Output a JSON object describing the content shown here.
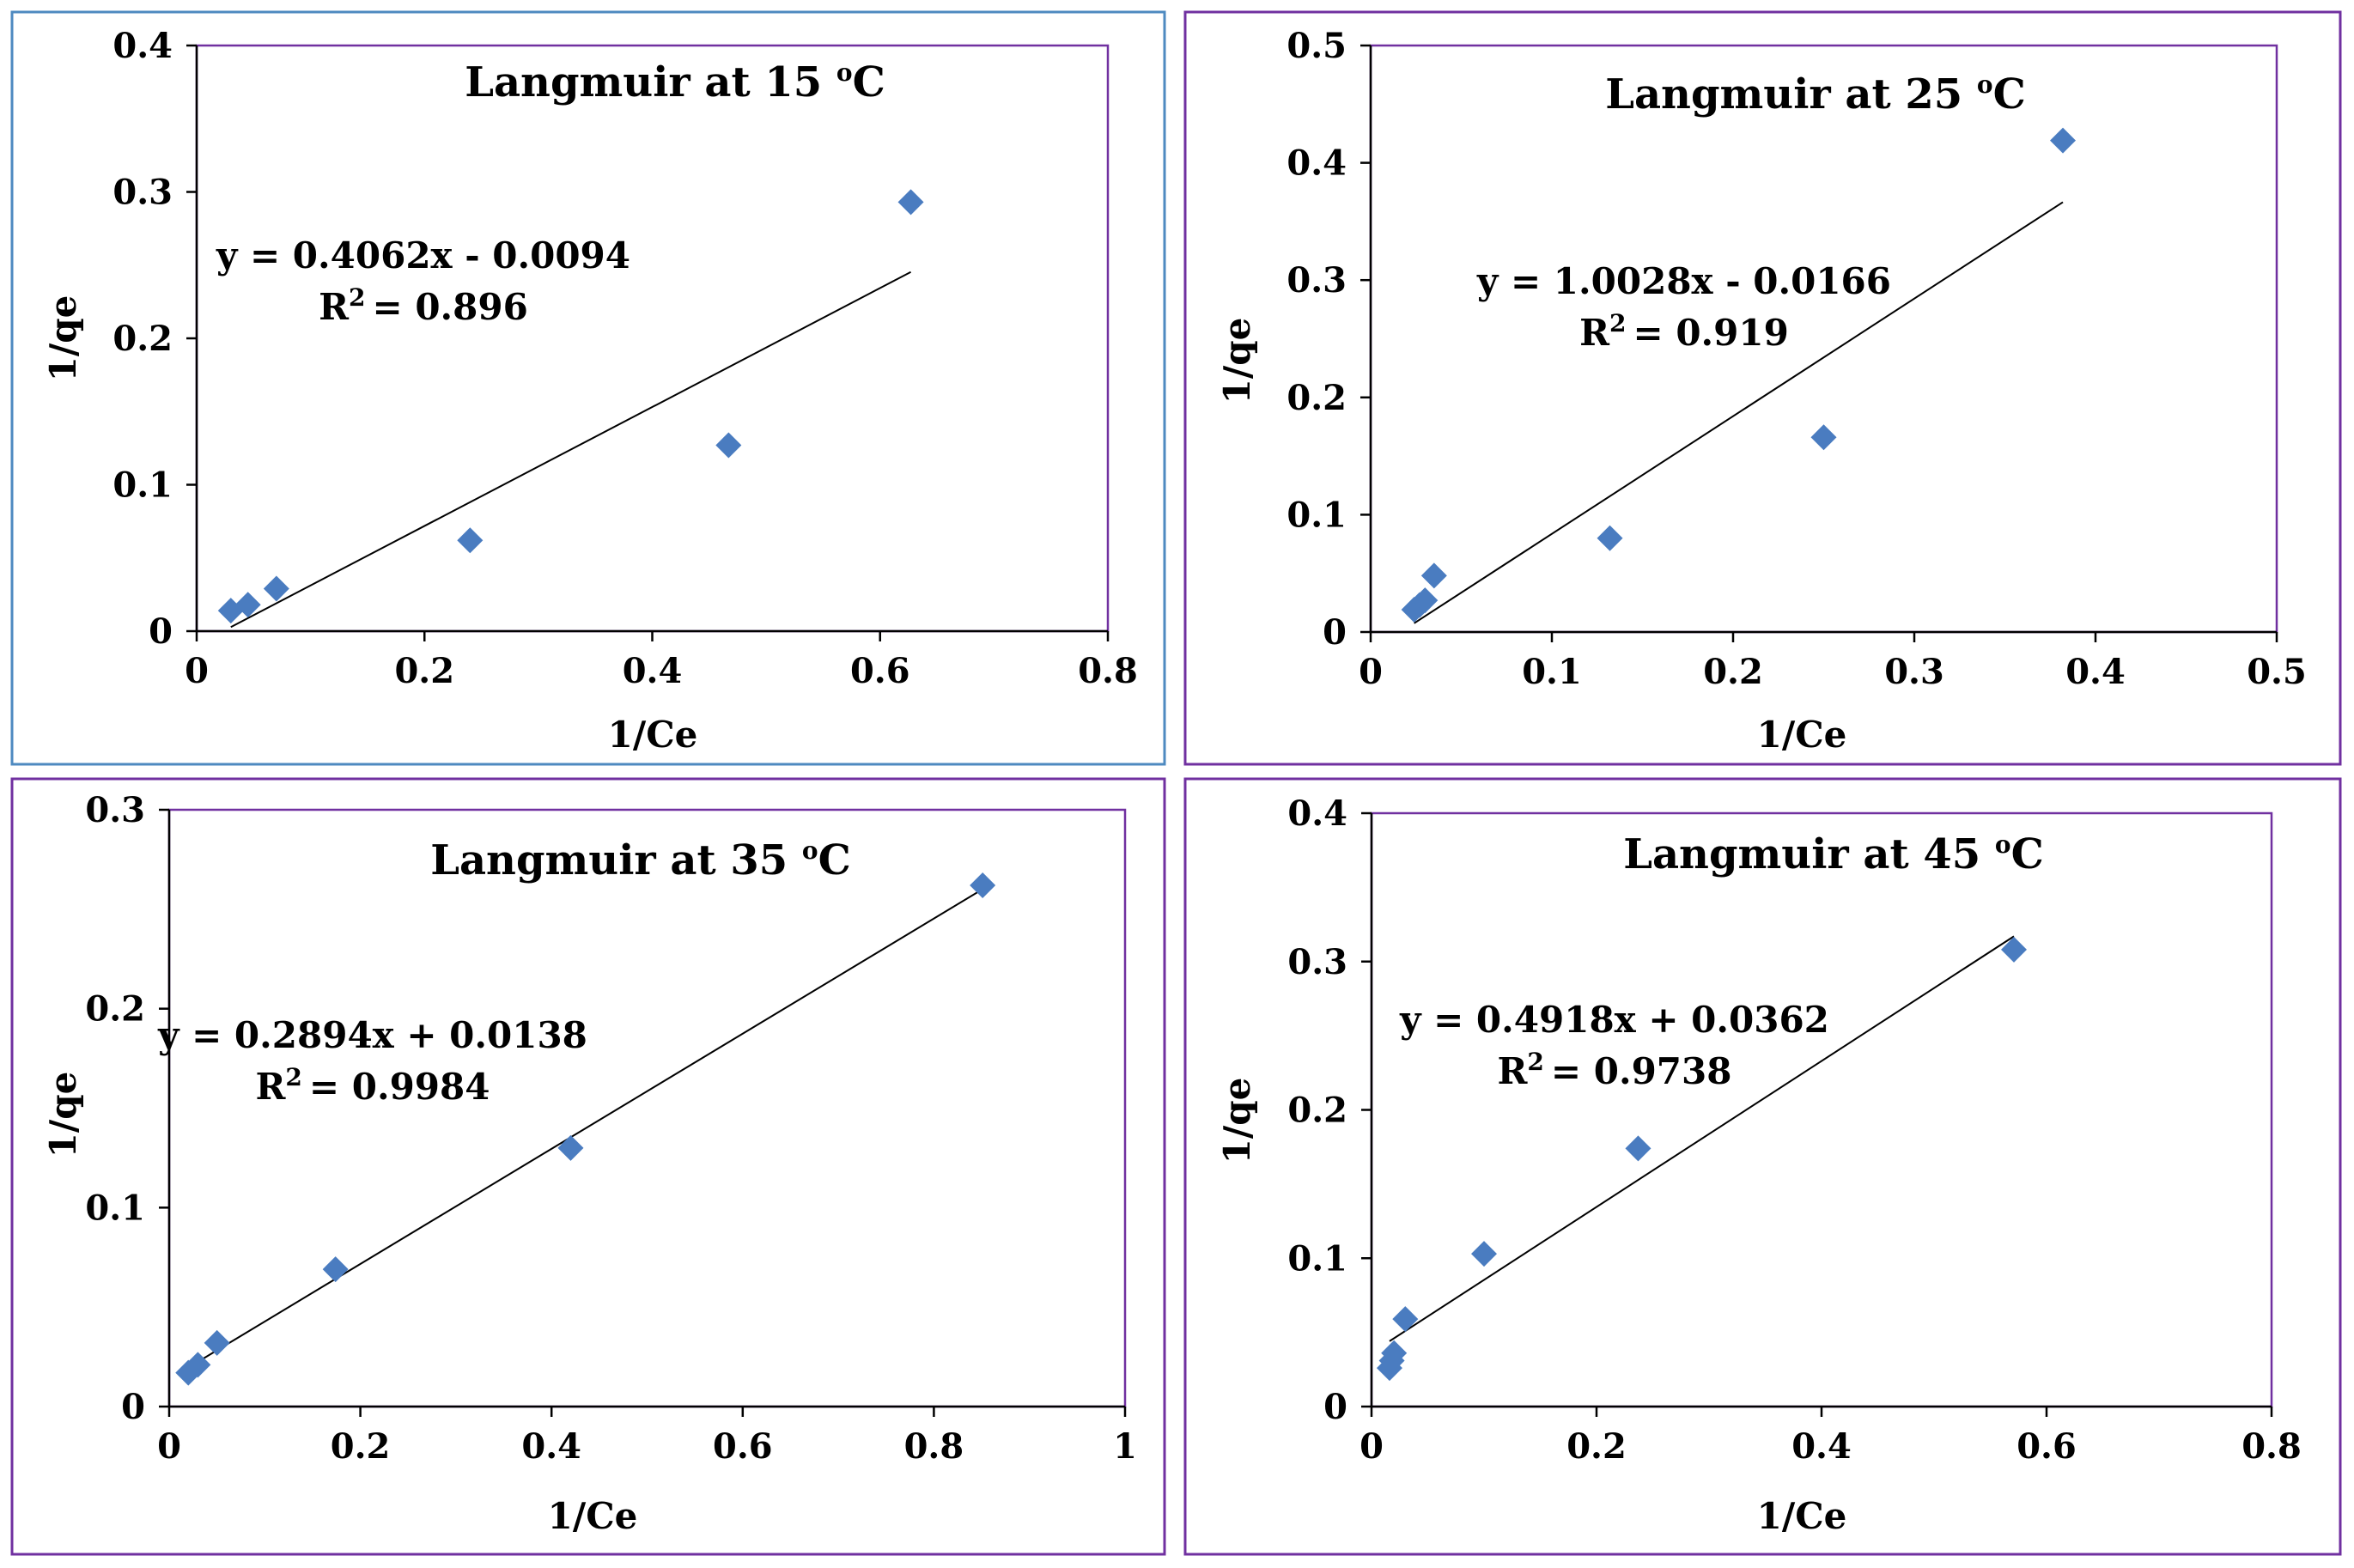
{
  "chart_data": [
    {
      "type": "scatter",
      "title": "Langmuir at 15 °C",
      "title_parts": {
        "text": "Langmuir at 15 ",
        "degree": "o",
        "unit": "C"
      },
      "xlabel": "1/Ce",
      "ylabel": "1/qe",
      "xlim": [
        0,
        0.8
      ],
      "ylim": [
        0,
        0.4
      ],
      "xticks": [
        0,
        0.2,
        0.4,
        0.6,
        0.8
      ],
      "yticks": [
        0,
        0.1,
        0.2,
        0.3,
        0.4
      ],
      "xtick_labels": [
        "0",
        "0.2",
        "0.4",
        "0.6",
        "0.8"
      ],
      "ytick_labels": [
        "0",
        "0.1",
        "0.2",
        "0.3",
        "0.4"
      ],
      "points": {
        "x": [
          0.03,
          0.045,
          0.07,
          0.24,
          0.467,
          0.627
        ],
        "y": [
          0.014,
          0.018,
          0.029,
          0.062,
          0.127,
          0.293
        ]
      },
      "trendline": {
        "slope": 0.4062,
        "intercept": -0.0094,
        "x_range": [
          0.03,
          0.627
        ]
      },
      "equation": "y = 0.4062x - 0.0094",
      "r2_value": "= 0.896",
      "r2_label": "R",
      "r2_exp": "2",
      "colors": {
        "marker": "#4a7cc0",
        "frame": "#4e8ac0"
      }
    },
    {
      "type": "scatter",
      "title": "Langmuir at 25 °C",
      "title_parts": {
        "text": "Langmuir at 25 ",
        "degree": "o",
        "unit": "C"
      },
      "xlabel": "1/Ce",
      "ylabel": "1/qe",
      "xlim": [
        0,
        0.5
      ],
      "ylim": [
        0,
        0.5
      ],
      "xticks": [
        0,
        0.1,
        0.2,
        0.3,
        0.4,
        0.5
      ],
      "yticks": [
        0,
        0.1,
        0.2,
        0.3,
        0.4,
        0.5
      ],
      "xtick_labels": [
        "0",
        "0.1",
        "0.2",
        "0.3",
        "0.4",
        "0.5"
      ],
      "ytick_labels": [
        "0",
        "0.1",
        "0.2",
        "0.3",
        "0.4",
        "0.5"
      ],
      "points": {
        "x": [
          0.024,
          0.027,
          0.03,
          0.035,
          0.132,
          0.25,
          0.382
        ],
        "y": [
          0.019,
          0.023,
          0.027,
          0.048,
          0.08,
          0.166,
          0.419
        ]
      },
      "trendline": {
        "slope": 1.0028,
        "intercept": -0.0166,
        "x_range": [
          0.024,
          0.382
        ]
      },
      "equation": "y = 1.0028x - 0.0166",
      "r2_value": "= 0.919",
      "r2_label": "R",
      "r2_exp": "2",
      "colors": {
        "marker": "#4a7cc0",
        "frame": "#7030a0"
      }
    },
    {
      "type": "scatter",
      "title": "Langmuir at 35 °C",
      "title_parts": {
        "text": "Langmuir at 35 ",
        "degree": "o",
        "unit": "C"
      },
      "xlabel": "1/Ce",
      "ylabel": "1/qe",
      "xlim": [
        0,
        1
      ],
      "ylim": [
        0,
        0.3
      ],
      "xticks": [
        0,
        0.2,
        0.4,
        0.6,
        0.8,
        1
      ],
      "yticks": [
        0,
        0.1,
        0.2,
        0.3
      ],
      "xtick_labels": [
        "0",
        "0.2",
        "0.4",
        "0.6",
        "0.8",
        "1"
      ],
      "ytick_labels": [
        "0",
        "0.1",
        "0.2",
        "0.3"
      ],
      "points": {
        "x": [
          0.02,
          0.03,
          0.05,
          0.174,
          0.42,
          0.851
        ],
        "y": [
          0.017,
          0.021,
          0.032,
          0.069,
          0.13,
          0.262
        ]
      },
      "trendline": {
        "slope": 0.2894,
        "intercept": 0.0138,
        "x_range": [
          0.02,
          0.851
        ]
      },
      "equation": "y = 0.2894x + 0.0138",
      "r2_value": "= 0.9984",
      "r2_label": "R",
      "r2_exp": "2",
      "colors": {
        "marker": "#4a7cc0",
        "frame": "#7030a0"
      }
    },
    {
      "type": "scatter",
      "title": "Langmuir at 45 °C",
      "title_parts": {
        "text": "Langmuir at 45 ",
        "degree": "o",
        "unit": "C"
      },
      "xlabel": "1/Ce",
      "ylabel": "1/qe",
      "xlim": [
        0,
        0.8
      ],
      "ylim": [
        0,
        0.4
      ],
      "xticks": [
        0,
        0.2,
        0.4,
        0.6,
        0.8
      ],
      "yticks": [
        0,
        0.1,
        0.2,
        0.3,
        0.4
      ],
      "xtick_labels": [
        "0",
        "0.2",
        "0.4",
        "0.6",
        "0.8"
      ],
      "ytick_labels": [
        "0",
        "0.1",
        "0.2",
        "0.3",
        "0.4"
      ],
      "points": {
        "x": [
          0.016,
          0.018,
          0.02,
          0.03,
          0.1,
          0.237,
          0.571
        ],
        "y": [
          0.026,
          0.031,
          0.036,
          0.059,
          0.103,
          0.174,
          0.308
        ]
      },
      "trendline": {
        "slope": 0.4918,
        "intercept": 0.0362,
        "x_range": [
          0.016,
          0.571
        ]
      },
      "equation": "y = 0.4918x + 0.0362",
      "r2_value": "= 0.9738",
      "r2_label": "R",
      "r2_exp": "2",
      "colors": {
        "marker": "#4a7cc0",
        "frame": "#7030a0"
      }
    }
  ]
}
